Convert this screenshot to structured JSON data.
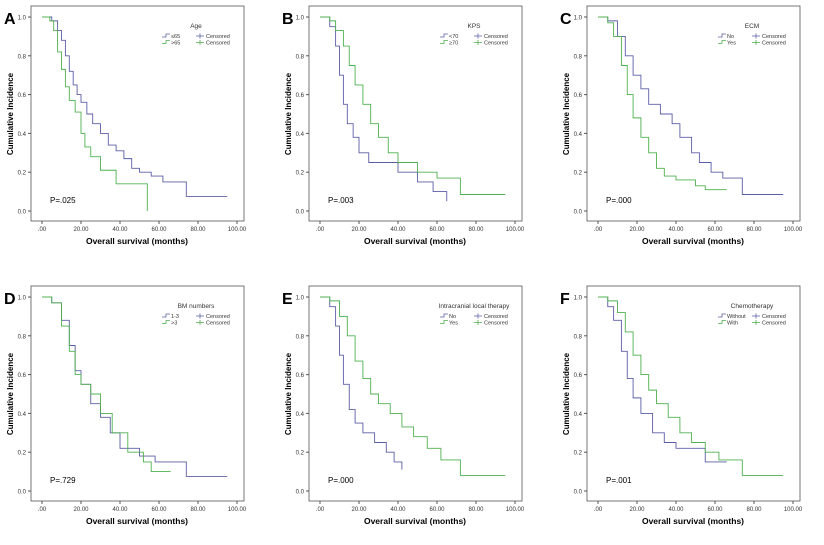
{
  "colors": {
    "group1": "#5b5ea6",
    "group2": "#4fb04f",
    "axis": "#333333"
  },
  "chart_data": [
    {
      "panel": "A",
      "type": "line",
      "step": true,
      "legend_title": "Age",
      "p_value": "P=.025",
      "xlabel": "Overall survival (months)",
      "ylabel": "Cumulative Incidence",
      "xlim": [
        0,
        100
      ],
      "ylim": [
        0,
        1
      ],
      "xticks": [
        ".00",
        "20.00",
        "40.00",
        "60.00",
        "80.00",
        "100.00"
      ],
      "yticks": [
        "0.0",
        "0.2",
        "0.4",
        "0.6",
        "0.8",
        "1.0"
      ],
      "legend_placement": "top-right",
      "censored_label": "Censored",
      "series": [
        {
          "name": "≤65",
          "points": [
            [
              0,
              1
            ],
            [
              3,
              1
            ],
            [
              5,
              0.98
            ],
            [
              8,
              0.93
            ],
            [
              10,
              0.88
            ],
            [
              12,
              0.8
            ],
            [
              14,
              0.72
            ],
            [
              16,
              0.65
            ],
            [
              18,
              0.6
            ],
            [
              20,
              0.56
            ],
            [
              23,
              0.5
            ],
            [
              26,
              0.45
            ],
            [
              30,
              0.4
            ],
            [
              34,
              0.34
            ],
            [
              38,
              0.31
            ],
            [
              42,
              0.27
            ],
            [
              46,
              0.22
            ],
            [
              50,
              0.2
            ],
            [
              56,
              0.18
            ],
            [
              62,
              0.15
            ],
            [
              74,
              0.15
            ],
            [
              74,
              0.075
            ],
            [
              95,
              0.075
            ]
          ]
        },
        {
          "name": ">65",
          "points": [
            [
              0,
              1
            ],
            [
              4,
              0.98
            ],
            [
              6,
              0.93
            ],
            [
              8,
              0.82
            ],
            [
              10,
              0.73
            ],
            [
              12,
              0.64
            ],
            [
              14,
              0.57
            ],
            [
              17,
              0.51
            ],
            [
              20,
              0.4
            ],
            [
              22,
              0.33
            ],
            [
              25,
              0.28
            ],
            [
              30,
              0.21
            ],
            [
              38,
              0.14
            ],
            [
              54,
              0.14
            ],
            [
              54,
              0
            ]
          ]
        }
      ]
    },
    {
      "panel": "B",
      "type": "line",
      "step": true,
      "legend_title": "KPS",
      "p_value": "P=.003",
      "xlabel": "Overall survival (months)",
      "ylabel": "Cumulative Incidence",
      "xlim": [
        0,
        100
      ],
      "ylim": [
        0,
        1
      ],
      "xticks": [
        ".00",
        "20.00",
        "40.00",
        "60.00",
        "80.00",
        "100.00"
      ],
      "yticks": [
        "0.0",
        "0.2",
        "0.4",
        "0.6",
        "0.8",
        "1.0"
      ],
      "legend_placement": "top-right",
      "censored_label": "Censored",
      "series": [
        {
          "name": "<70",
          "points": [
            [
              0,
              1
            ],
            [
              5,
              0.95
            ],
            [
              8,
              0.85
            ],
            [
              10,
              0.7
            ],
            [
              12,
              0.55
            ],
            [
              14,
              0.45
            ],
            [
              17,
              0.38
            ],
            [
              20,
              0.3
            ],
            [
              25,
              0.25
            ],
            [
              30,
              0.25
            ],
            [
              40,
              0.2
            ],
            [
              50,
              0.15
            ],
            [
              58,
              0.1
            ],
            [
              65,
              0.05
            ]
          ]
        },
        {
          "name": "≥70",
          "points": [
            [
              0,
              1
            ],
            [
              5,
              0.98
            ],
            [
              8,
              0.93
            ],
            [
              12,
              0.85
            ],
            [
              15,
              0.75
            ],
            [
              18,
              0.65
            ],
            [
              22,
              0.55
            ],
            [
              26,
              0.45
            ],
            [
              30,
              0.38
            ],
            [
              35,
              0.3
            ],
            [
              40,
              0.25
            ],
            [
              50,
              0.2
            ],
            [
              60,
              0.17
            ],
            [
              72,
              0.17
            ],
            [
              72,
              0.085
            ],
            [
              95,
              0.085
            ]
          ]
        }
      ]
    },
    {
      "panel": "C",
      "type": "line",
      "step": true,
      "legend_title": "ECM",
      "p_value": "P=.000",
      "xlabel": "Overall survival (months)",
      "ylabel": "Cumulative Incidence",
      "xlim": [
        0,
        100
      ],
      "ylim": [
        0,
        1
      ],
      "xticks": [
        ".00",
        "20.00",
        "40.00",
        "60.00",
        "80.00",
        "100.00"
      ],
      "yticks": [
        "0.0",
        "0.2",
        "0.4",
        "0.6",
        "0.8",
        "1.0"
      ],
      "legend_placement": "top-right",
      "censored_label": "Censored",
      "series": [
        {
          "name": "No",
          "points": [
            [
              0,
              1
            ],
            [
              5,
              0.98
            ],
            [
              10,
              0.9
            ],
            [
              14,
              0.8
            ],
            [
              18,
              0.7
            ],
            [
              22,
              0.63
            ],
            [
              26,
              0.55
            ],
            [
              32,
              0.5
            ],
            [
              38,
              0.45
            ],
            [
              42,
              0.38
            ],
            [
              48,
              0.3
            ],
            [
              52,
              0.25
            ],
            [
              58,
              0.2
            ],
            [
              64,
              0.17
            ],
            [
              74,
              0.17
            ],
            [
              74,
              0.085
            ],
            [
              95,
              0.085
            ]
          ]
        },
        {
          "name": "Yes",
          "points": [
            [
              0,
              1
            ],
            [
              5,
              0.97
            ],
            [
              8,
              0.9
            ],
            [
              12,
              0.75
            ],
            [
              15,
              0.6
            ],
            [
              18,
              0.48
            ],
            [
              22,
              0.38
            ],
            [
              26,
              0.3
            ],
            [
              30,
              0.22
            ],
            [
              34,
              0.18
            ],
            [
              40,
              0.16
            ],
            [
              50,
              0.13
            ],
            [
              55,
              0.11
            ],
            [
              66,
              0.11
            ]
          ]
        }
      ]
    },
    {
      "panel": "D",
      "type": "line",
      "step": true,
      "legend_title": "BM numbers",
      "p_value": "P=.729",
      "xlabel": "Overall survival (months)",
      "ylabel": "Cumulative Incidence",
      "xlim": [
        0,
        100
      ],
      "ylim": [
        0,
        1
      ],
      "xticks": [
        ".00",
        "20.00",
        "40.00",
        "60.00",
        "80.00",
        "100.00"
      ],
      "yticks": [
        "0.0",
        "0.2",
        "0.4",
        "0.6",
        "0.8",
        "1.0"
      ],
      "legend_placement": "top-right",
      "censored_label": "Censored",
      "series": [
        {
          "name": "1-3",
          "points": [
            [
              0,
              1
            ],
            [
              5,
              0.97
            ],
            [
              10,
              0.88
            ],
            [
              14,
              0.75
            ],
            [
              17,
              0.62
            ],
            [
              20,
              0.55
            ],
            [
              25,
              0.45
            ],
            [
              30,
              0.38
            ],
            [
              35,
              0.3
            ],
            [
              40,
              0.22
            ],
            [
              50,
              0.18
            ],
            [
              58,
              0.15
            ],
            [
              74,
              0.15
            ],
            [
              74,
              0.075
            ],
            [
              95,
              0.075
            ]
          ]
        },
        {
          "name": ">3",
          "points": [
            [
              0,
              1
            ],
            [
              5,
              0.97
            ],
            [
              10,
              0.85
            ],
            [
              14,
              0.72
            ],
            [
              17,
              0.6
            ],
            [
              20,
              0.55
            ],
            [
              25,
              0.5
            ],
            [
              30,
              0.4
            ],
            [
              36,
              0.3
            ],
            [
              44,
              0.3
            ],
            [
              44,
              0.2
            ],
            [
              52,
              0.15
            ],
            [
              56,
              0.1
            ],
            [
              66,
              0.1
            ]
          ]
        }
      ]
    },
    {
      "panel": "E",
      "type": "line",
      "step": true,
      "legend_title": "Intracranial local therapy",
      "p_value": "P=.000",
      "xlabel": "Overall survival (months)",
      "ylabel": "Cumulative Incidence",
      "xlim": [
        0,
        100
      ],
      "ylim": [
        0,
        1
      ],
      "xticks": [
        ".00",
        "20.00",
        "40.00",
        "60.00",
        "80.00",
        "100.00"
      ],
      "yticks": [
        "0.0",
        "0.2",
        "0.4",
        "0.6",
        "0.8",
        "1.0"
      ],
      "legend_placement": "top-right",
      "censored_label": "Censored",
      "series": [
        {
          "name": "No",
          "points": [
            [
              0,
              1
            ],
            [
              5,
              0.95
            ],
            [
              8,
              0.85
            ],
            [
              10,
              0.7
            ],
            [
              12,
              0.55
            ],
            [
              15,
              0.42
            ],
            [
              18,
              0.35
            ],
            [
              22,
              0.3
            ],
            [
              28,
              0.25
            ],
            [
              34,
              0.2
            ],
            [
              38,
              0.15
            ],
            [
              42,
              0.11
            ]
          ]
        },
        {
          "name": "Yes",
          "points": [
            [
              0,
              1
            ],
            [
              5,
              0.98
            ],
            [
              10,
              0.9
            ],
            [
              14,
              0.8
            ],
            [
              18,
              0.67
            ],
            [
              22,
              0.58
            ],
            [
              26,
              0.5
            ],
            [
              30,
              0.45
            ],
            [
              36,
              0.4
            ],
            [
              42,
              0.33
            ],
            [
              48,
              0.28
            ],
            [
              55,
              0.22
            ],
            [
              62,
              0.16
            ],
            [
              72,
              0.16
            ],
            [
              72,
              0.08
            ],
            [
              95,
              0.08
            ]
          ]
        }
      ]
    },
    {
      "panel": "F",
      "type": "line",
      "step": true,
      "legend_title": "Chemotherapy",
      "p_value": "P=.001",
      "xlabel": "Overall survival (months)",
      "ylabel": "Cumulative Incidence",
      "xlim": [
        0,
        100
      ],
      "ylim": [
        0,
        1
      ],
      "xticks": [
        ".00",
        "20.00",
        "40.00",
        "60.00",
        "80.00",
        "100.00"
      ],
      "yticks": [
        "0.0",
        "0.2",
        "0.4",
        "0.6",
        "0.8",
        "1.0"
      ],
      "legend_placement": "top-right",
      "censored_label": "Censored",
      "series": [
        {
          "name": "Without",
          "points": [
            [
              0,
              1
            ],
            [
              5,
              0.95
            ],
            [
              8,
              0.88
            ],
            [
              12,
              0.72
            ],
            [
              15,
              0.58
            ],
            [
              18,
              0.48
            ],
            [
              22,
              0.4
            ],
            [
              28,
              0.3
            ],
            [
              34,
              0.25
            ],
            [
              40,
              0.22
            ],
            [
              50,
              0.22
            ],
            [
              55,
              0.15
            ],
            [
              66,
              0.15
            ]
          ]
        },
        {
          "name": "With",
          "points": [
            [
              0,
              1
            ],
            [
              5,
              0.98
            ],
            [
              10,
              0.92
            ],
            [
              14,
              0.82
            ],
            [
              18,
              0.7
            ],
            [
              22,
              0.6
            ],
            [
              26,
              0.52
            ],
            [
              30,
              0.45
            ],
            [
              36,
              0.38
            ],
            [
              42,
              0.3
            ],
            [
              48,
              0.25
            ],
            [
              55,
              0.2
            ],
            [
              62,
              0.16
            ],
            [
              74,
              0.16
            ],
            [
              74,
              0.08
            ],
            [
              95,
              0.08
            ]
          ]
        }
      ]
    }
  ]
}
